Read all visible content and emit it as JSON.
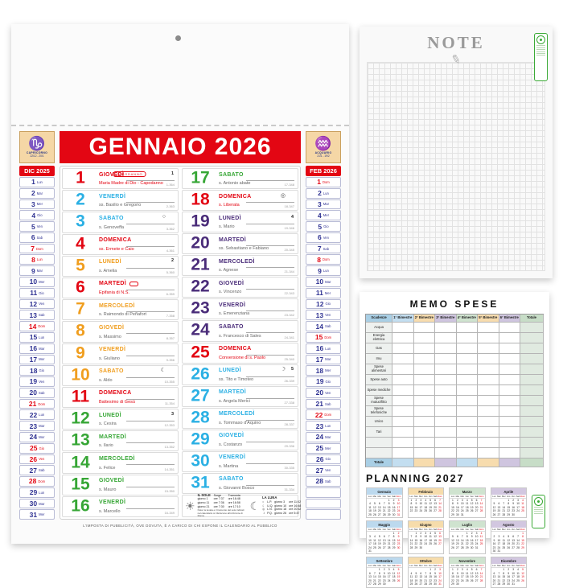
{
  "calendar": {
    "title": "GENNAIO 2026",
    "zodiac_left": {
      "symbol": "♑",
      "name": "CAPRICORNO",
      "dates": "22/12 - 20/1"
    },
    "zodiac_right": {
      "symbol": "♒",
      "name": "ACQUARIO",
      "dates": "21/1 - 19/2"
    },
    "prev": {
      "label": "DIC 2025",
      "rows": [
        [
          1,
          "Lun",
          0
        ],
        [
          2,
          "Mar",
          0
        ],
        [
          3,
          "Mer",
          0
        ],
        [
          4,
          "Gio",
          0
        ],
        [
          5,
          "Ven",
          0
        ],
        [
          6,
          "Sab",
          0
        ],
        [
          7,
          "Dom",
          1
        ],
        [
          8,
          "Lun",
          1
        ],
        [
          9,
          "Mar",
          0
        ],
        [
          10,
          "Mer",
          0
        ],
        [
          11,
          "Gio",
          0
        ],
        [
          12,
          "Ven",
          0
        ],
        [
          13,
          "Sab",
          0
        ],
        [
          14,
          "Dom",
          1
        ],
        [
          15,
          "Lun",
          0
        ],
        [
          16,
          "Mar",
          0
        ],
        [
          17,
          "Mer",
          0
        ],
        [
          18,
          "Gio",
          0
        ],
        [
          19,
          "Ven",
          0
        ],
        [
          20,
          "Sab",
          0
        ],
        [
          21,
          "Dom",
          1
        ],
        [
          22,
          "Lun",
          0
        ],
        [
          23,
          "Mar",
          0
        ],
        [
          24,
          "Mer",
          0
        ],
        [
          25,
          "Gio",
          1
        ],
        [
          26,
          "Ven",
          1
        ],
        [
          27,
          "Sab",
          0
        ],
        [
          28,
          "Dom",
          1
        ],
        [
          29,
          "Lun",
          0
        ],
        [
          30,
          "Mar",
          0
        ],
        [
          31,
          "Mer",
          0
        ]
      ],
      "empty_rows": 0
    },
    "next": {
      "label": "FEB 2026",
      "rows": [
        [
          1,
          "Dom",
          1
        ],
        [
          2,
          "Lun",
          0
        ],
        [
          3,
          "Mar",
          0
        ],
        [
          4,
          "Mer",
          0
        ],
        [
          5,
          "Gio",
          0
        ],
        [
          6,
          "Ven",
          0
        ],
        [
          7,
          "Sab",
          0
        ],
        [
          8,
          "Dom",
          1
        ],
        [
          9,
          "Lun",
          0
        ],
        [
          10,
          "Mar",
          0
        ],
        [
          11,
          "Mer",
          0
        ],
        [
          12,
          "Gio",
          0
        ],
        [
          13,
          "Ven",
          0
        ],
        [
          14,
          "Sab",
          0
        ],
        [
          15,
          "Dom",
          1
        ],
        [
          16,
          "Lun",
          0
        ],
        [
          17,
          "Mar",
          0
        ],
        [
          18,
          "Mer",
          0
        ],
        [
          19,
          "Gio",
          0
        ],
        [
          20,
          "Ven",
          0
        ],
        [
          21,
          "Sab",
          0
        ],
        [
          22,
          "Dom",
          1
        ],
        [
          23,
          "Lun",
          0
        ],
        [
          24,
          "Mar",
          0
        ],
        [
          25,
          "Mer",
          0
        ],
        [
          26,
          "Gio",
          0
        ],
        [
          27,
          "Ven",
          0
        ],
        [
          28,
          "Sab",
          0
        ]
      ],
      "empty_rows": 3
    },
    "days": [
      {
        "n": 1,
        "name": "GIOVEDÌ",
        "saint": "Maria Madre di Dio - Capodanno",
        "c": "red",
        "week": "1",
        "badge": "CAPODANNO",
        "doy": "1-364"
      },
      {
        "n": 2,
        "name": "VENERDÌ",
        "saint": "ss. Basilio e Gregorio",
        "c": "cyan",
        "doy": "2-363"
      },
      {
        "n": 3,
        "name": "SABATO",
        "saint": "s. Genoveffa",
        "c": "cyan",
        "moon": "○",
        "doy": "3-362"
      },
      {
        "n": 4,
        "name": "DOMENICA",
        "saint": "ss. Ermete e Caio",
        "c": "red",
        "doy": "4-361"
      },
      {
        "n": 5,
        "name": "LUNEDÌ",
        "saint": "s. Amelia",
        "c": "orange",
        "week": "2",
        "doy": "5-360"
      },
      {
        "n": 6,
        "name": "MARTEDÌ",
        "saint": "Epifania di N.S.",
        "c": "red",
        "mark": true,
        "doy": "6-359"
      },
      {
        "n": 7,
        "name": "MERCOLEDÌ",
        "saint": "s. Raimondo di Peñafort",
        "c": "orange",
        "doy": "7-358"
      },
      {
        "n": 8,
        "name": "GIOVEDÌ",
        "saint": "s. Massimo",
        "c": "orange",
        "doy": "8-357"
      },
      {
        "n": 9,
        "name": "VENERDÌ",
        "saint": "s. Giuliano",
        "c": "orange",
        "doy": "9-356"
      },
      {
        "n": 10,
        "name": "SABATO",
        "saint": "s. Aldo",
        "c": "orange",
        "moon": "☾",
        "doy": "10-355"
      },
      {
        "n": 11,
        "name": "DOMENICA",
        "saint": "Battesimo di Gesù",
        "c": "red",
        "doy": "11-354"
      },
      {
        "n": 12,
        "name": "LUNEDÌ",
        "saint": "s. Cesira",
        "c": "green",
        "week": "3",
        "doy": "12-353"
      },
      {
        "n": 13,
        "name": "MARTEDÌ",
        "saint": "s. Ilario",
        "c": "green",
        "doy": "13-352"
      },
      {
        "n": 14,
        "name": "MERCOLEDÌ",
        "saint": "s. Felice",
        "c": "green",
        "doy": "14-351"
      },
      {
        "n": 15,
        "name": "GIOVEDÌ",
        "saint": "s. Mauro",
        "c": "green",
        "doy": "15-350"
      },
      {
        "n": 16,
        "name": "VENERDÌ",
        "saint": "s. Marcello",
        "c": "green",
        "doy": "16-349"
      },
      {
        "n": 17,
        "name": "SABATO",
        "saint": "s. Antonio abate",
        "c": "green",
        "doy": "17-348"
      },
      {
        "n": 18,
        "name": "DOMENICA",
        "saint": "s. Liberata",
        "c": "red",
        "moon": "◎",
        "doy": "18-347"
      },
      {
        "n": 19,
        "name": "LUNEDÌ",
        "saint": "s. Mario",
        "c": "purple",
        "week": "4",
        "doy": "19-346"
      },
      {
        "n": 20,
        "name": "MARTEDÌ",
        "saint": "ss. Sebastiano e Fabiano",
        "c": "purple",
        "doy": "20-345"
      },
      {
        "n": 21,
        "name": "MERCOLEDÌ",
        "saint": "s. Agnese",
        "c": "purple",
        "doy": "21-344"
      },
      {
        "n": 22,
        "name": "GIOVEDÌ",
        "saint": "s. Vincenzo",
        "c": "purple",
        "doy": "22-343"
      },
      {
        "n": 23,
        "name": "VENERDÌ",
        "saint": "s. Emerenziana",
        "c": "purple",
        "doy": "23-342"
      },
      {
        "n": 24,
        "name": "SABATO",
        "saint": "s. Francesco di Sales",
        "c": "purple",
        "doy": "24-341"
      },
      {
        "n": 25,
        "name": "DOMENICA",
        "saint": "Conversione di s. Paolo",
        "c": "red",
        "doy": "25-340"
      },
      {
        "n": 26,
        "name": "LUNEDÌ",
        "saint": "ss. Tito e Timoteo",
        "c": "cyan",
        "week": "5",
        "moon": "☽",
        "doy": "26-339"
      },
      {
        "n": 27,
        "name": "MARTEDÌ",
        "saint": "s. Angela Merici",
        "c": "cyan",
        "doy": "27-338"
      },
      {
        "n": 28,
        "name": "MERCOLEDÌ",
        "saint": "s. Tommaso d'Aquino",
        "c": "cyan",
        "doy": "28-337"
      },
      {
        "n": 29,
        "name": "GIOVEDÌ",
        "saint": "s. Costanzo",
        "c": "cyan",
        "doy": "29-336"
      },
      {
        "n": 30,
        "name": "VENERDÌ",
        "saint": "s. Martina",
        "c": "cyan",
        "doy": "30-335"
      },
      {
        "n": 31,
        "name": "SABATO",
        "saint": "s. Giovanni Bosco",
        "c": "cyan",
        "doy": "31-334"
      }
    ],
    "sun": {
      "title": "IL SOLE",
      "col1": "Sorge",
      "col2": "Tramonta",
      "rows": [
        [
          "giorno 1",
          "ore 7:37",
          "ore 16:48"
        ],
        [
          "giorno 11",
          "ore 7:36",
          "ore 16:58"
        ],
        [
          "giorno 21",
          "ore 7:30",
          "ore 17:10"
        ]
      ],
      "note": "Nota: la levata e il tramonto del sole indicati nel calendario si riferiscono all'orizzonte di Roma."
    },
    "moon": {
      "title": "LA LUNA",
      "rows": [
        [
          "○",
          "L.P.",
          "giorno 3",
          "ore 11:02"
        ],
        [
          "☾",
          "U.Q.",
          "giorno 10",
          "ore 16:48"
        ],
        [
          "◎",
          "L.N.",
          "giorno 18",
          "ore 20:52"
        ],
        [
          "☽",
          "P.Q.",
          "giorno 26",
          "ore 5:47"
        ]
      ]
    },
    "footer": "L'IMPOSTA DI PUBBLICITÀ, OVE DOVUTA, È A CARICO DI CHI ESPONE IL CALENDARIO AL PUBBLICO"
  },
  "note_page": {
    "title": "NOTE",
    "pencil_icon": "✎"
  },
  "memo": {
    "title": "MEMO SPESE",
    "headers": [
      "Scadenze",
      "1° Bimestre",
      "2° Bimestre",
      "3° Bimestre",
      "4° Bimestre",
      "5° Bimestre",
      "6° Bimestre",
      "Totale"
    ],
    "header_colors": [
      "#a9cfe5",
      "#c3def0",
      "#f7dcae",
      "#cfc5df",
      "#cfe3cf",
      "#f7dcae",
      "#cfc5df",
      "#c7ddc7"
    ],
    "rows": [
      "Acqua",
      "Energia elettrica",
      "Gas",
      "Imu",
      "Spese alimentari",
      "Spese auto",
      "Spese mediche",
      "Spese mutuo/fitto",
      "Spese telefoniche",
      "Unico",
      "Tari",
      "",
      ""
    ],
    "total_label": "Totale",
    "total_label_color": "#a9cfe5",
    "total_colors": [
      "#c3def0",
      "#f7dcae",
      "#cfc5df",
      "#c3def0",
      "#f7dcae",
      "#cfc5df",
      "#c7ddc7"
    ]
  },
  "planning": {
    "title": "PLANNING 2027",
    "weekdays": [
      "Lun",
      "Mar",
      "Mer",
      "Gio",
      "Ven",
      "Sab",
      "Dom"
    ],
    "month_colors": [
      "#bcd9ee",
      "#f6dcab",
      "#cfe3cf",
      "#d2c7e0"
    ],
    "months": [
      {
        "name": "Gennaio",
        "start": 4,
        "days": 31
      },
      {
        "name": "Febbraio",
        "start": 0,
        "days": 28
      },
      {
        "name": "Marzo",
        "start": 0,
        "days": 31
      },
      {
        "name": "Aprile",
        "start": 3,
        "days": 30
      },
      {
        "name": "Maggio",
        "start": 5,
        "days": 31
      },
      {
        "name": "Giugno",
        "start": 1,
        "days": 30
      },
      {
        "name": "Luglio",
        "start": 3,
        "days": 31
      },
      {
        "name": "Agosto",
        "start": 6,
        "days": 31
      },
      {
        "name": "Settembre",
        "start": 2,
        "days": 30
      },
      {
        "name": "Ottobre",
        "start": 4,
        "days": 31
      },
      {
        "name": "Novembre",
        "start": 0,
        "days": 30
      },
      {
        "name": "Dicembre",
        "start": 2,
        "days": 31
      }
    ]
  },
  "palette": {
    "red": "#e30613",
    "cyan": "#2bb0e4",
    "orange": "#f09e1f",
    "green": "#36a635",
    "purple": "#4a2c79",
    "dark_blue": "#2e3192"
  }
}
